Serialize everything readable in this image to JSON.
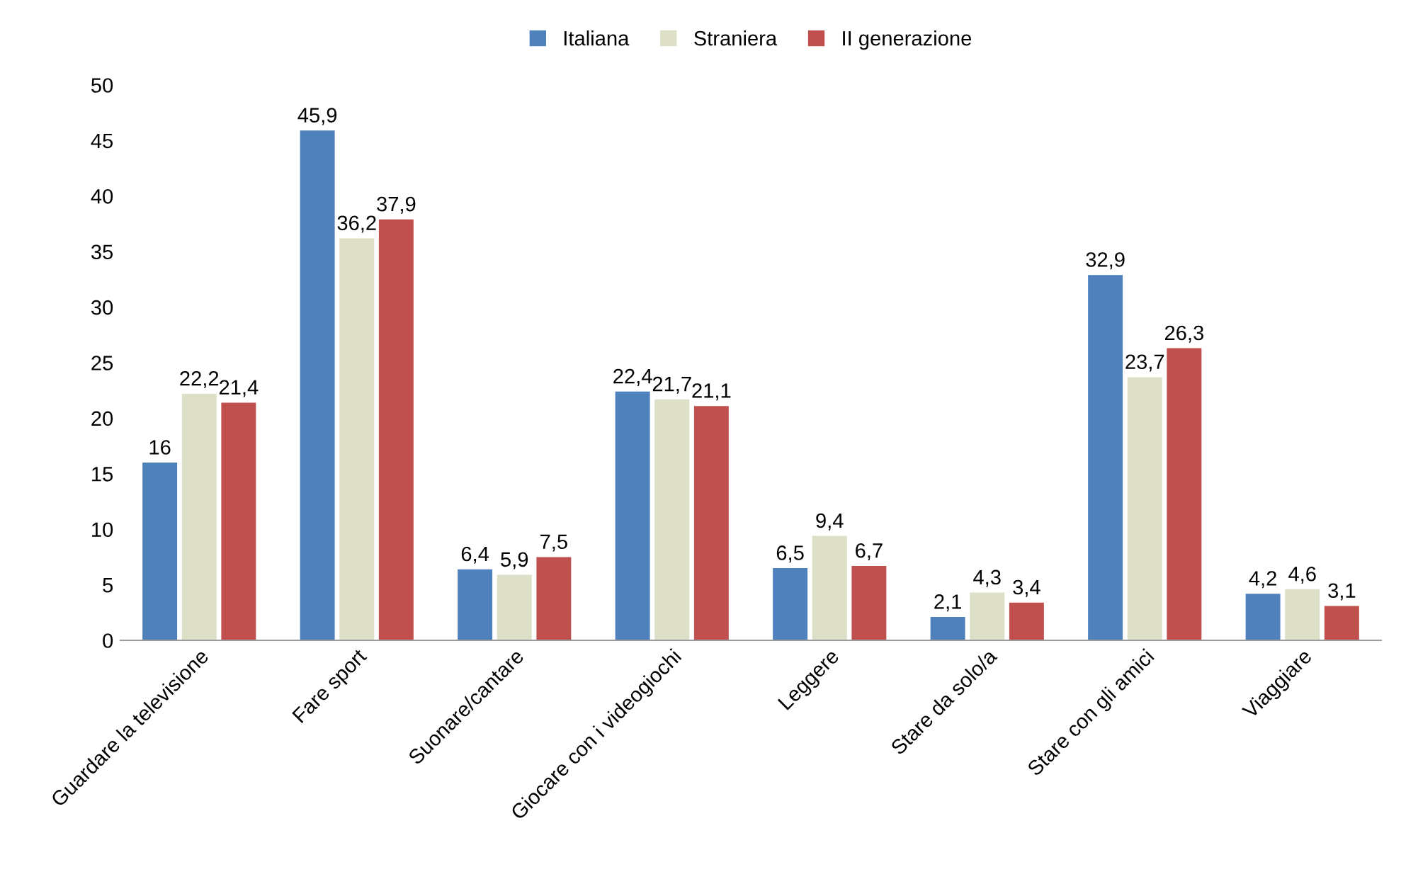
{
  "chart_data": {
    "type": "bar",
    "categories": [
      "Guardare la televisione",
      "Fare sport",
      "Suonare/cantare",
      "Giocare con i videogiochi",
      "Leggere",
      "Stare da solo/a",
      "Stare con gli amici",
      "Viaggiare"
    ],
    "series": [
      {
        "name": "Italiana",
        "color": "#4f81bd",
        "values": [
          16,
          45.9,
          6.4,
          22.4,
          6.5,
          2.1,
          32.9,
          4.2
        ],
        "value_labels": [
          "16",
          "45,9",
          "6,4",
          "22,4",
          "6,5",
          "2,1",
          "32,9",
          "4,2"
        ]
      },
      {
        "name": "Straniera",
        "color": "#dde0c6",
        "values": [
          22.2,
          36.2,
          5.9,
          21.7,
          9.4,
          4.3,
          23.7,
          4.6
        ],
        "value_labels": [
          "22,2",
          "36,2",
          "5,9",
          "21,7",
          "9,4",
          "4,3",
          "23,7",
          "4,6"
        ]
      },
      {
        "name": "II generazione",
        "color": "#c0504d",
        "values": [
          21.4,
          37.9,
          7.5,
          21.1,
          6.7,
          3.4,
          26.3,
          3.1
        ],
        "value_labels": [
          "21,4",
          "37,9",
          "7,5",
          "21,1",
          "6,7",
          "3,4",
          "26,3",
          "3,1"
        ]
      }
    ],
    "ylim": [
      0,
      50
    ],
    "yticks": [
      0,
      5,
      10,
      15,
      20,
      25,
      30,
      35,
      40,
      45,
      50
    ],
    "grid": false,
    "legend": "top"
  }
}
